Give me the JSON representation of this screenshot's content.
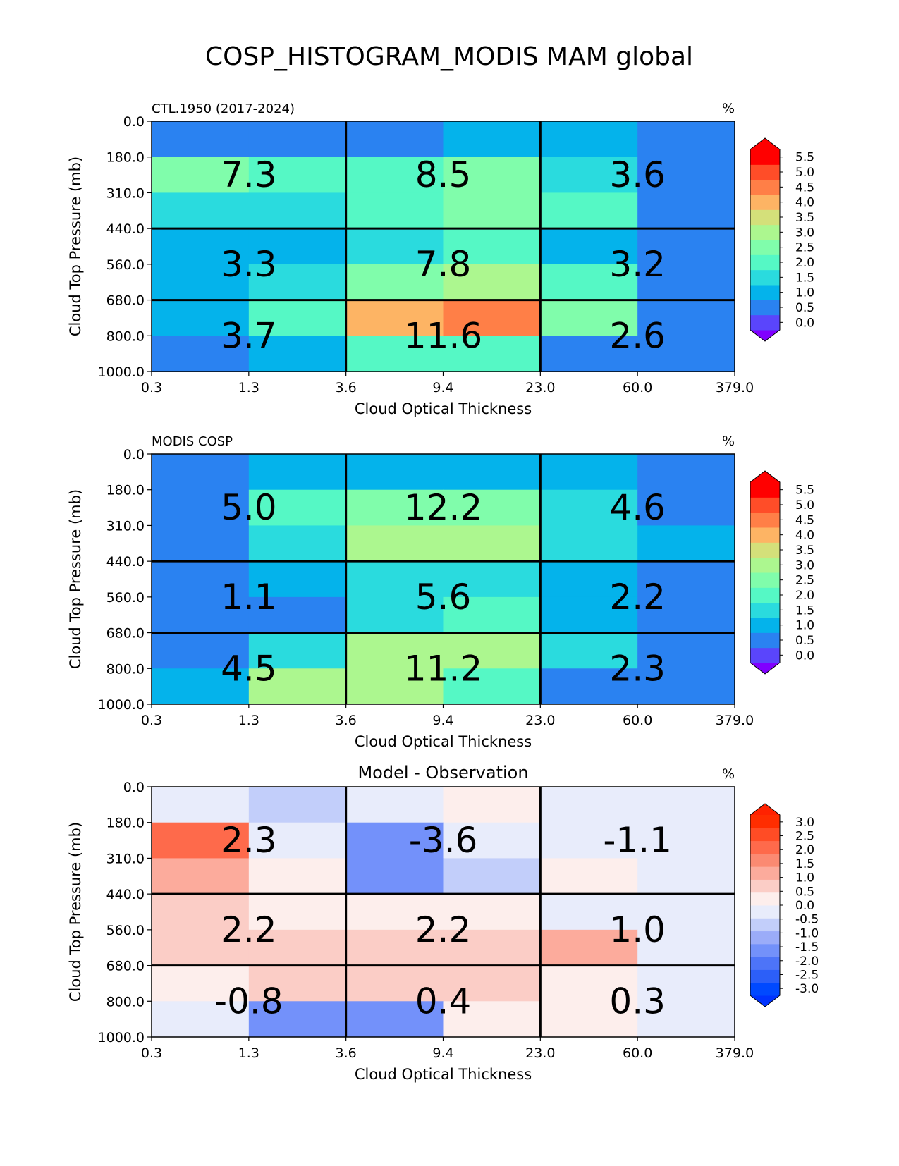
{
  "figure_title": "COSP_HISTOGRAM_MODIS MAM global",
  "chart_data": [
    {
      "type": "heatmap",
      "title": "",
      "left_label": "CTL.1950 (2017-2024)",
      "units": "%",
      "xlabel": "Cloud Optical Thickness",
      "ylabel": "Cloud Top Pressure (mb)",
      "x_ticks": [
        "0.3",
        "1.3",
        "3.6",
        "9.4",
        "23.0",
        "60.0",
        "379.0"
      ],
      "y_ticks": [
        "0.0",
        "180.0",
        "310.0",
        "440.0",
        "560.0",
        "680.0",
        "800.0",
        "1000.0"
      ],
      "grid": [
        [
          0.3,
          0.3,
          0.3,
          0.8,
          0.8,
          0.3
        ],
        [
          2.3,
          2.1,
          2.1,
          2.3,
          1.5,
          0.3
        ],
        [
          1.5,
          1.5,
          2.1,
          2.3,
          2.1,
          0.3
        ],
        [
          1.0,
          1.0,
          1.5,
          2.1,
          1.0,
          0.3
        ],
        [
          1.0,
          1.5,
          2.3,
          2.8,
          2.1,
          0.3
        ],
        [
          1.0,
          2.1,
          3.8,
          4.3,
          2.3,
          0.3
        ],
        [
          0.3,
          1.0,
          2.1,
          2.1,
          0.3,
          0.3
        ]
      ],
      "box_values": [
        [
          "7.3",
          "8.5",
          "3.6"
        ],
        [
          "3.3",
          "7.8",
          "3.2"
        ],
        [
          "3.7",
          "11.6",
          "2.6"
        ]
      ],
      "colorbar": {
        "levels": [
          -0.25,
          0.25,
          0.75,
          1.25,
          1.75,
          2.25,
          2.75,
          3.25,
          3.75,
          4.25,
          4.75,
          5.25,
          5.75
        ],
        "colors": [
          "#5a45fc",
          "#2a82f1",
          "#04b3eb",
          "#2adbde",
          "#55f8c5",
          "#80fdab",
          "#acf78f",
          "#d4e07a",
          "#fdb464",
          "#ff7f47",
          "#ff4d28",
          "#ff0000"
        ],
        "under_color": "#8000ff",
        "over_color": "#ff0000",
        "tick_labels": [
          "0.0",
          "0.5",
          "1.0",
          "1.5",
          "2.0",
          "2.5",
          "3.0",
          "3.5",
          "4.0",
          "4.5",
          "5.0",
          "5.5"
        ],
        "tick_values": [
          0,
          0.5,
          1,
          1.5,
          2,
          2.5,
          3,
          3.5,
          4,
          4.5,
          5,
          5.5
        ]
      }
    },
    {
      "type": "heatmap",
      "title": "",
      "left_label": "MODIS COSP",
      "units": "%",
      "xlabel": "Cloud Optical Thickness",
      "ylabel": "Cloud Top Pressure (mb)",
      "x_ticks": [
        "0.3",
        "1.3",
        "3.6",
        "9.4",
        "23.0",
        "60.0",
        "379.0"
      ],
      "y_ticks": [
        "0.0",
        "180.0",
        "310.0",
        "440.0",
        "560.0",
        "680.0",
        "800.0",
        "1000.0"
      ],
      "grid": [
        [
          0.3,
          0.8,
          0.8,
          0.8,
          0.8,
          0.3
        ],
        [
          0.3,
          2.1,
          2.3,
          2.3,
          1.5,
          0.3
        ],
        [
          0.3,
          1.5,
          2.8,
          2.8,
          1.5,
          0.8
        ],
        [
          0.3,
          1.0,
          1.5,
          1.5,
          1.0,
          0.3
        ],
        [
          0.3,
          0.3,
          1.5,
          2.1,
          1.0,
          0.3
        ],
        [
          0.3,
          1.5,
          3.2,
          3.2,
          1.5,
          0.3
        ],
        [
          1.0,
          2.8,
          2.8,
          2.1,
          0.3,
          0.3
        ]
      ],
      "box_values": [
        [
          "5.0",
          "12.2",
          "4.6"
        ],
        [
          "1.1",
          "5.6",
          "2.2"
        ],
        [
          "4.5",
          "11.2",
          "2.3"
        ]
      ],
      "colorbar": {
        "levels": [
          -0.25,
          0.25,
          0.75,
          1.25,
          1.75,
          2.25,
          2.75,
          3.25,
          3.75,
          4.25,
          4.75,
          5.25,
          5.75
        ],
        "colors": [
          "#5a45fc",
          "#2a82f1",
          "#04b3eb",
          "#2adbde",
          "#55f8c5",
          "#80fdab",
          "#acf78f",
          "#d4e07a",
          "#fdb464",
          "#ff7f47",
          "#ff4d28",
          "#ff0000"
        ],
        "under_color": "#8000ff",
        "over_color": "#ff0000",
        "tick_labels": [
          "0.0",
          "0.5",
          "1.0",
          "1.5",
          "2.0",
          "2.5",
          "3.0",
          "3.5",
          "4.0",
          "4.5",
          "5.0",
          "5.5"
        ],
        "tick_values": [
          0,
          0.5,
          1,
          1.5,
          2,
          2.5,
          3,
          3.5,
          4,
          4.5,
          5,
          5.5
        ]
      }
    },
    {
      "type": "heatmap",
      "title": "Model - Observation",
      "left_label": "",
      "units": "%",
      "xlabel": "Cloud Optical Thickness",
      "ylabel": "Cloud Top Pressure (mb)",
      "x_ticks": [
        "0.3",
        "1.3",
        "3.6",
        "9.4",
        "23.0",
        "60.0",
        "379.0"
      ],
      "y_ticks": [
        "0.0",
        "180.0",
        "310.0",
        "440.0",
        "560.0",
        "680.0",
        "800.0",
        "1000.0"
      ],
      "grid": [
        [
          0.0,
          -0.5,
          0.0,
          0.25,
          0.0,
          0.0
        ],
        [
          2.0,
          0.0,
          -1.3,
          0.0,
          0.0,
          0.0
        ],
        [
          1.3,
          0.25,
          -1.3,
          -0.5,
          0.25,
          0.0
        ],
        [
          0.75,
          0.25,
          0.25,
          0.25,
          0.0,
          0.0
        ],
        [
          0.75,
          0.75,
          0.75,
          0.75,
          1.0,
          0.0
        ],
        [
          0.25,
          0.75,
          0.75,
          0.75,
          0.25,
          0.0
        ],
        [
          0.0,
          -1.7,
          -1.3,
          0.25,
          0.25,
          0.0
        ]
      ],
      "box_values": [
        [
          "2.3",
          "-3.6",
          "-1.1"
        ],
        [
          "2.2",
          "2.2",
          "1.0"
        ],
        [
          "-0.8",
          "0.4",
          "0.3"
        ]
      ],
      "colorbar": {
        "levels": [
          -3.25,
          -2.75,
          -2.25,
          -1.75,
          -1.25,
          -0.75,
          -0.25,
          0.125,
          0.5,
          1.0,
          1.5,
          2.0,
          2.5,
          3.0,
          3.25
        ],
        "colors": [
          "#0049ff",
          "#2c5ff8",
          "#4d74f8",
          "#7391fa",
          "#9bacf9",
          "#c2cefa",
          "#e8ecfb",
          "#fdeeec",
          "#fbcdc6",
          "#fcab9c",
          "#fb8a72",
          "#fe6a4b",
          "#ff4c25",
          "#ff2d00"
        ],
        "under_color": "#0033ff",
        "over_color": "#ff2200",
        "tick_labels": [
          "3.0",
          "2.5",
          "2.0",
          "1.5",
          "1.0",
          "0.5",
          "0.0",
          "-0.5",
          "-1.0",
          "-1.5",
          "-2.0",
          "-2.5",
          "-3.0"
        ],
        "tick_values": [
          3.0,
          2.5,
          2.0,
          1.5,
          1.0,
          0.5,
          0.0,
          -0.5,
          -1.0,
          -1.5,
          -2.0,
          -2.5,
          -3.0
        ]
      }
    }
  ]
}
